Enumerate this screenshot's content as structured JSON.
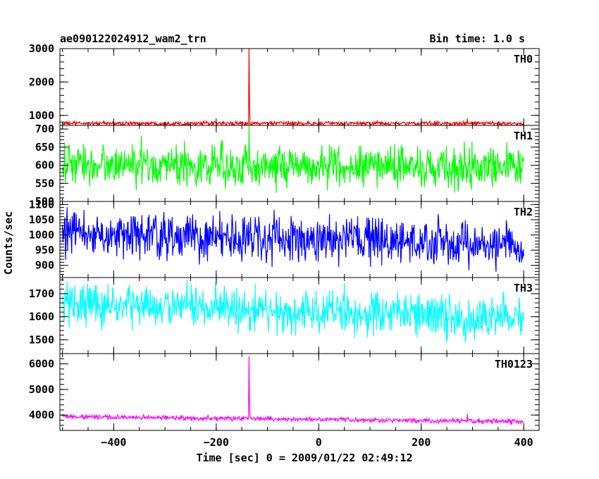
{
  "chart_data": {
    "type": "line",
    "title": "ae090122024912_wam2_trn",
    "bin_time": "Bin time: 1.0 s",
    "xlabel": "Time [sec] 0 = 2009/01/22 02:49:12",
    "ylabel": "Counts/sec",
    "xlim": [
      -505,
      430
    ],
    "x_ticks": [
      -400,
      -200,
      0,
      200,
      400
    ],
    "x_tick_labels": [
      "−400",
      "−200",
      "0",
      "200",
      "400"
    ],
    "x_start": -500,
    "x_end": 400,
    "x_step": 1,
    "panels": [
      {
        "name": "TH0",
        "color": "#ff0000",
        "ylim": [
          700,
          3000
        ],
        "y_ticks": [
          1000,
          2000,
          3000
        ],
        "y_tick_labels": [
          "1000",
          "2000",
          "3000"
        ],
        "baseline": 760,
        "noise": 30,
        "trend": 0,
        "spikes": [
          {
            "x": -136,
            "y": 3000
          },
          {
            "x": -135,
            "y": 1400
          },
          {
            "x": 290,
            "y": 900
          }
        ]
      },
      {
        "name": "TH1",
        "color": "#00ff00",
        "ylim": [
          500,
          710
        ],
        "y_ticks": [
          500,
          550,
          600,
          650,
          700
        ],
        "y_tick_labels": [
          "500",
          "550",
          "600",
          "650",
          "700"
        ],
        "baseline": 598,
        "noise": 28,
        "trend": -0.008,
        "spikes": [
          {
            "x": -136,
            "y": 710
          }
        ]
      },
      {
        "name": "TH2",
        "color": "#0000ff",
        "ylim": [
          860,
          1110
        ],
        "y_ticks": [
          900,
          950,
          1000,
          1050,
          1100
        ],
        "y_tick_labels": [
          "900",
          "950",
          "1000",
          "1050",
          "1100"
        ],
        "baseline": 985,
        "noise": 36,
        "trend": -0.045,
        "spikes": []
      },
      {
        "name": "TH3",
        "color": "#00ffff",
        "ylim": [
          1440,
          1770
        ],
        "y_ticks": [
          1500,
          1600,
          1700
        ],
        "y_tick_labels": [
          "1500",
          "1600",
          "1700"
        ],
        "baseline": 1625,
        "noise": 46,
        "trend": -0.075,
        "spikes": []
      },
      {
        "name": "TH0123",
        "color": "#ff00ff",
        "ylim": [
          3400,
          6400
        ],
        "y_ticks": [
          4000,
          5000,
          6000
        ],
        "y_tick_labels": [
          "4000",
          "5000",
          "6000"
        ],
        "baseline": 3840,
        "noise": 45,
        "trend": -0.22,
        "spikes": [
          {
            "x": -136,
            "y": 6300
          },
          {
            "x": -135,
            "y": 4500
          },
          {
            "x": 290,
            "y": 4050
          }
        ]
      }
    ]
  }
}
